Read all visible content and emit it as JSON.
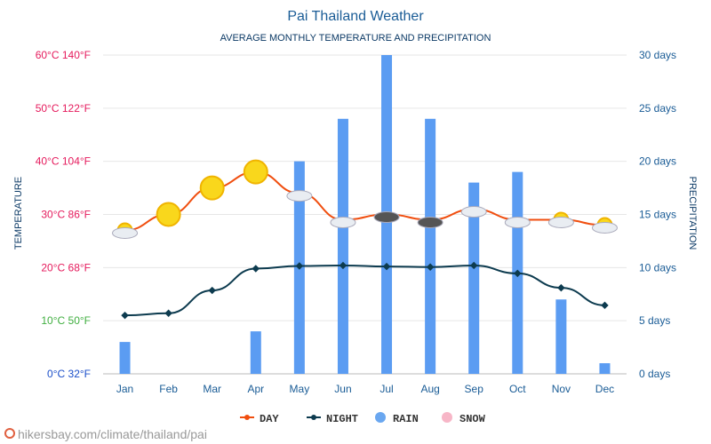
{
  "title": "Pai Thailand Weather",
  "subtitle": "AVERAGE MONTHLY TEMPERATURE AND PRECIPITATION",
  "ylabel": "TEMPERATURE",
  "y2label": "PRECIPITATION",
  "url": "hikersbay.com/climate/thailand/pai",
  "legend": [
    {
      "label": "DAY",
      "color": "#f04e0f"
    },
    {
      "label": "NIGHT",
      "color": "#0d3b4f"
    },
    {
      "label": "RAIN",
      "color": "#6aa7f0"
    },
    {
      "label": "SNOW",
      "color": "#f7b6c7"
    }
  ],
  "chart_data": {
    "type": "bar",
    "categories": [
      "Jan",
      "Feb",
      "Mar",
      "Apr",
      "May",
      "Jun",
      "Jul",
      "Aug",
      "Sep",
      "Oct",
      "Nov",
      "Dec"
    ],
    "series": [
      {
        "name": "DAY",
        "unit": "°C",
        "values": [
          27,
          30,
          35,
          38,
          34,
          29,
          30,
          29,
          31,
          29,
          29,
          28
        ]
      },
      {
        "name": "NIGHT",
        "unit": "°C",
        "values": [
          11,
          11.4,
          15.7,
          19.8,
          20.3,
          20.4,
          20.2,
          20.1,
          20.4,
          18.9,
          16.2,
          12.9
        ]
      },
      {
        "name": "RAIN",
        "unit": "days",
        "values": [
          3,
          0,
          0,
          4,
          20,
          24,
          30,
          24,
          18,
          19,
          7,
          1
        ]
      }
    ],
    "y_ticks": [
      "0°C 32°F",
      "10°C 50°F",
      "20°C 68°F",
      "30°C 86°F",
      "40°C 104°F",
      "50°C 122°F",
      "60°C 140°F"
    ],
    "y_tick_colors": [
      "#1a4ec9",
      "#3fae3f",
      "#e51a5c",
      "#e51a5c",
      "#e51a5c",
      "#e51a5c",
      "#e51a5c"
    ],
    "y2_ticks": [
      "0 days",
      "5 days",
      "10 days",
      "15 days",
      "20 days",
      "25 days",
      "30 days"
    ],
    "ylim": [
      0,
      60
    ],
    "y2lim": [
      0,
      30
    ],
    "grid": true,
    "legend_position": "bottom"
  }
}
